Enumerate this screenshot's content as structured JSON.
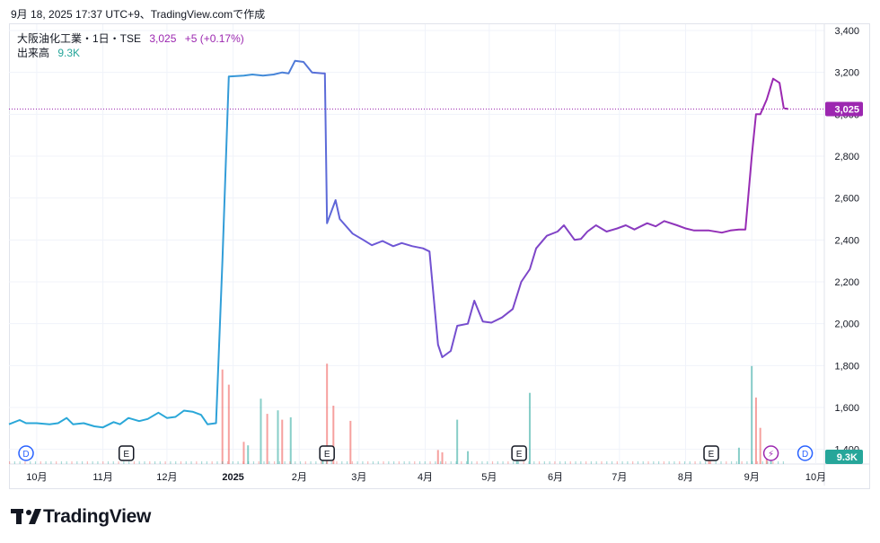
{
  "header": {
    "caption": "9月 18, 2025 17:37 UTC+9、TradingView.comで作成"
  },
  "legend": {
    "symbol": "大阪油化工業・1日・TSE",
    "price": "3,025",
    "change": "+5 (+0.17%)",
    "volume_label": "出来高",
    "volume_value": "9.3K"
  },
  "brand": {
    "name": "TradingView",
    "logo_icon": "tradingview-logo-icon"
  },
  "colors": {
    "price_line_start": "#2aa7d8",
    "price_line_end": "#9c27b0",
    "vol_up": "#26a69a",
    "vol_down": "#ef5350",
    "last_price": "#9c27b0",
    "last_volume": "#26a69a"
  },
  "chart_data": {
    "type": "line",
    "title": "大阪油化工業・1日・TSE",
    "y_axis": {
      "ticks": [
        "3,400",
        "3,200",
        "3,000",
        "2,800",
        "2,600",
        "2,400",
        "2,200",
        "2,000",
        "1,800",
        "1,600",
        "1,400"
      ],
      "range": [
        1330,
        3430
      ],
      "position": "right"
    },
    "x_axis": {
      "ticks": [
        "10月",
        "11月",
        "12月",
        "2025",
        "2月",
        "3月",
        "4月",
        "5月",
        "6月",
        "7月",
        "8月",
        "9月",
        "10月"
      ]
    },
    "last_price_label": "3,025",
    "last_volume_label": "9.3K",
    "event_markers": [
      {
        "label": "D",
        "date": "2024-09-26",
        "icon": "dividend-icon"
      },
      {
        "label": "E",
        "date": "2024-11-12",
        "icon": "earnings-icon"
      },
      {
        "label": "E",
        "date": "2025-02-14",
        "icon": "earnings-icon"
      },
      {
        "label": "E",
        "date": "2025-05-15",
        "icon": "earnings-icon"
      },
      {
        "label": "E",
        "date": "2025-08-13",
        "icon": "earnings-icon"
      },
      {
        "label": "⚡",
        "date": "2025-09-10",
        "icon": "lightning-icon"
      },
      {
        "label": "D",
        "date": "2025-09-26",
        "icon": "dividend-icon"
      }
    ],
    "series": [
      {
        "type": "line",
        "points": [
          [
            "2024-09-18",
            1520
          ],
          [
            "2024-09-23",
            1540
          ],
          [
            "2024-09-26",
            1525
          ],
          [
            "2024-10-01",
            1525
          ],
          [
            "2024-10-07",
            1520
          ],
          [
            "2024-10-11",
            1525
          ],
          [
            "2024-10-15",
            1550
          ],
          [
            "2024-10-18",
            1520
          ],
          [
            "2024-10-23",
            1525
          ],
          [
            "2024-10-28",
            1510
          ],
          [
            "2024-11-01",
            1505
          ],
          [
            "2024-11-06",
            1530
          ],
          [
            "2024-11-09",
            1520
          ],
          [
            "2024-11-13",
            1550
          ],
          [
            "2024-11-18",
            1535
          ],
          [
            "2024-11-22",
            1545
          ],
          [
            "2024-11-27",
            1575
          ],
          [
            "2024-12-01",
            1550
          ],
          [
            "2024-12-05",
            1555
          ],
          [
            "2024-12-09",
            1585
          ],
          [
            "2024-12-13",
            1580
          ],
          [
            "2024-12-17",
            1565
          ],
          [
            "2024-12-20",
            1520
          ],
          [
            "2024-12-24",
            1525
          ],
          [
            "2024-12-27",
            2300
          ],
          [
            "2024-12-30",
            3180
          ],
          [
            "2025-01-06",
            3185
          ],
          [
            "2025-01-10",
            3190
          ],
          [
            "2025-01-15",
            3185
          ],
          [
            "2025-01-20",
            3190
          ],
          [
            "2025-01-24",
            3200
          ],
          [
            "2025-01-27",
            3195
          ],
          [
            "2025-01-30",
            3255
          ],
          [
            "2025-02-03",
            3250
          ],
          [
            "2025-02-07",
            3200
          ],
          [
            "2025-02-12",
            3195
          ],
          [
            "2025-02-13",
            3195
          ],
          [
            "2025-02-14",
            2480
          ],
          [
            "2025-02-18",
            2590
          ],
          [
            "2025-02-20",
            2500
          ],
          [
            "2025-02-26",
            2430
          ],
          [
            "2025-03-03",
            2400
          ],
          [
            "2025-03-07",
            2375
          ],
          [
            "2025-03-12",
            2395
          ],
          [
            "2025-03-17",
            2370
          ],
          [
            "2025-03-21",
            2385
          ],
          [
            "2025-03-26",
            2370
          ],
          [
            "2025-03-31",
            2360
          ],
          [
            "2025-04-03",
            2345
          ],
          [
            "2025-04-07",
            1900
          ],
          [
            "2025-04-09",
            1840
          ],
          [
            "2025-04-13",
            1870
          ],
          [
            "2025-04-16",
            1990
          ],
          [
            "2025-04-21",
            2000
          ],
          [
            "2025-04-24",
            2110
          ],
          [
            "2025-04-28",
            2010
          ],
          [
            "2025-05-02",
            2005
          ],
          [
            "2025-05-07",
            2030
          ],
          [
            "2025-05-12",
            2070
          ],
          [
            "2025-05-16",
            2200
          ],
          [
            "2025-05-20",
            2260
          ],
          [
            "2025-05-23",
            2360
          ],
          [
            "2025-05-28",
            2420
          ],
          [
            "2025-06-02",
            2440
          ],
          [
            "2025-06-05",
            2470
          ],
          [
            "2025-06-10",
            2400
          ],
          [
            "2025-06-13",
            2405
          ],
          [
            "2025-06-16",
            2440
          ],
          [
            "2025-06-20",
            2470
          ],
          [
            "2025-06-25",
            2440
          ],
          [
            "2025-06-30",
            2455
          ],
          [
            "2025-07-04",
            2470
          ],
          [
            "2025-07-08",
            2450
          ],
          [
            "2025-07-14",
            2480
          ],
          [
            "2025-07-18",
            2465
          ],
          [
            "2025-07-22",
            2490
          ],
          [
            "2025-07-28",
            2470
          ],
          [
            "2025-08-01",
            2455
          ],
          [
            "2025-08-05",
            2445
          ],
          [
            "2025-08-12",
            2445
          ],
          [
            "2025-08-18",
            2435
          ],
          [
            "2025-08-22",
            2445
          ],
          [
            "2025-08-26",
            2450
          ],
          [
            "2025-08-29",
            2450
          ],
          [
            "2025-09-01",
            2800
          ],
          [
            "2025-09-03",
            3000
          ],
          [
            "2025-09-05",
            3000
          ],
          [
            "2025-09-08",
            3070
          ],
          [
            "2025-09-11",
            3170
          ],
          [
            "2025-09-14",
            3150
          ],
          [
            "2025-09-16",
            3030
          ],
          [
            "2025-09-18",
            3025
          ]
        ]
      }
    ],
    "volume": {
      "label": "出来高",
      "bars": [
        [
          "2024-12-27",
          810,
          "down"
        ],
        [
          "2024-12-30",
          680,
          "down"
        ],
        [
          "2025-01-06",
          190,
          "down"
        ],
        [
          "2025-01-08",
          160,
          "up"
        ],
        [
          "2025-01-14",
          560,
          "up"
        ],
        [
          "2025-01-17",
          430,
          "down"
        ],
        [
          "2025-01-22",
          460,
          "up"
        ],
        [
          "2025-01-24",
          380,
          "down"
        ],
        [
          "2025-01-28",
          400,
          "up"
        ],
        [
          "2025-02-12",
          100,
          "up"
        ],
        [
          "2025-02-14",
          860,
          "down"
        ],
        [
          "2025-02-17",
          500,
          "down"
        ],
        [
          "2025-02-25",
          370,
          "down"
        ],
        [
          "2025-04-07",
          120,
          "down"
        ],
        [
          "2025-04-09",
          100,
          "down"
        ],
        [
          "2025-04-16",
          380,
          "up"
        ],
        [
          "2025-04-21",
          110,
          "up"
        ],
        [
          "2025-05-14",
          140,
          "up"
        ],
        [
          "2025-05-20",
          610,
          "up"
        ],
        [
          "2025-08-12",
          110,
          "down"
        ],
        [
          "2025-08-26",
          140,
          "up"
        ],
        [
          "2025-09-01",
          840,
          "up"
        ],
        [
          "2025-09-03",
          570,
          "down"
        ],
        [
          "2025-09-05",
          310,
          "down"
        ],
        [
          "2025-09-08",
          120,
          "down"
        ],
        [
          "2025-09-10",
          70,
          "up"
        ]
      ]
    }
  }
}
